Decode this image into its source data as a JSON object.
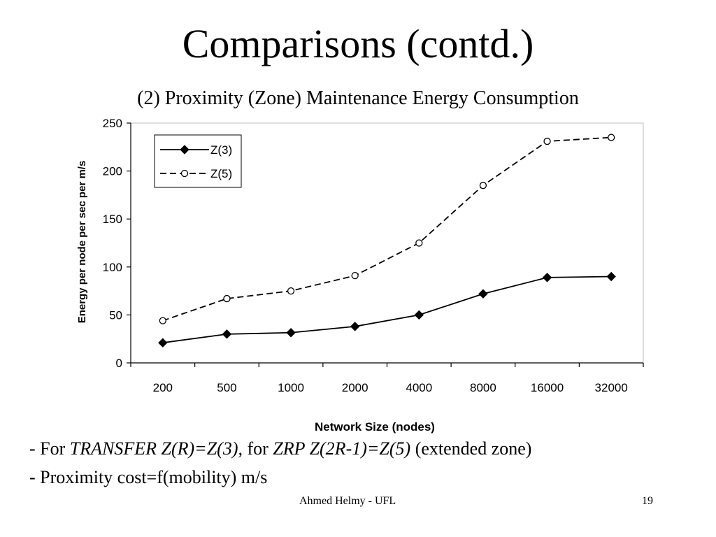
{
  "slide": {
    "title": "Comparisons (contd.)",
    "footer_author": "Ahmed Helmy - UFL",
    "page_number": "19"
  },
  "bullets": {
    "b1": {
      "prefix": "- For ",
      "transfer": "TRANSFER Z(R)=Z(3),",
      "mid": " for ",
      "zrp": "ZRP Z(2R-1)=Z(5)",
      "suffix": " (extended zone)"
    },
    "b2": "- Proximity cost=f(mobility) m/s"
  },
  "chart_data": {
    "type": "line",
    "title": "(2) Proximity (Zone) Maintenance Energy Consumption",
    "xlabel": "Network Size (nodes)",
    "ylabel": "Energy per node per sec per m/s",
    "categories": [
      "200",
      "500",
      "1000",
      "2000",
      "4000",
      "8000",
      "16000",
      "32000"
    ],
    "yticks": [
      0,
      50,
      100,
      150,
      200,
      250
    ],
    "ylim": [
      0,
      250
    ],
    "grid": false,
    "legend_position": "top-left",
    "series": [
      {
        "name": "Z(3)",
        "values": [
          21,
          30,
          31.5,
          38,
          50,
          72,
          89,
          90
        ],
        "marker": "filled-diamond",
        "line": "solid",
        "color": "#000000"
      },
      {
        "name": "Z(5)",
        "values": [
          44,
          67,
          75,
          91,
          125,
          185,
          231,
          235
        ],
        "marker": "open-circle",
        "line": "dashed",
        "color": "#000000"
      }
    ]
  }
}
